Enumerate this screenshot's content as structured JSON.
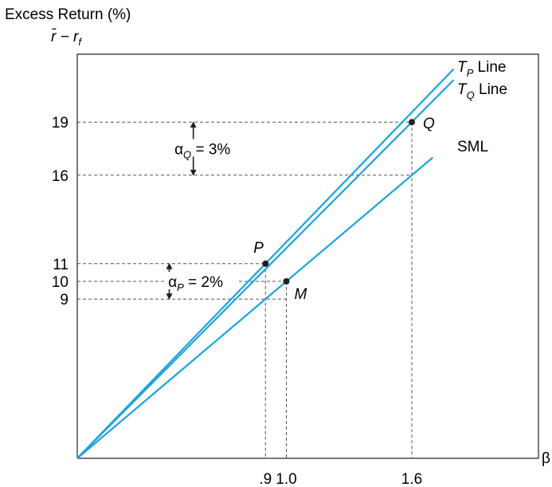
{
  "chart_data": {
    "type": "line",
    "ylabel": "Excess Return (%)",
    "ylabel_formula": "r̄ − r",
    "ylabel_formula_sub": "f",
    "xlabel": "β",
    "xlim": [
      0,
      2.3
    ],
    "ylim": [
      0,
      23
    ],
    "grid": false,
    "x_ticks": [
      {
        "value": 0.9,
        "label": ".9"
      },
      {
        "value": 1.0,
        "label": "1.0"
      },
      {
        "value": 1.6,
        "label": "1.6"
      }
    ],
    "y_ticks": [
      {
        "value": 9,
        "label": "9"
      },
      {
        "value": 10,
        "label": "10"
      },
      {
        "value": 11,
        "label": "11"
      },
      {
        "value": 16,
        "label": "16"
      },
      {
        "value": 19,
        "label": "19"
      }
    ],
    "series": [
      {
        "name": "TP Line",
        "label_main": "T",
        "label_sub": "P",
        "label_rest": " Line",
        "x": [
          0,
          1.8
        ],
        "y": [
          0,
          22
        ],
        "color": "#1ba3e0"
      },
      {
        "name": "TQ Line",
        "label_main": "T",
        "label_sub": "Q",
        "label_rest": " Line",
        "x": [
          0,
          1.8
        ],
        "y": [
          0,
          21.38
        ],
        "color": "#1ba3e0"
      },
      {
        "name": "SML",
        "label_main": "SML",
        "label_sub": "",
        "label_rest": "",
        "x": [
          0,
          1.7
        ],
        "y": [
          0,
          17
        ],
        "color": "#1ba3e0"
      }
    ],
    "points": [
      {
        "name": "P",
        "x": 0.9,
        "y": 11
      },
      {
        "name": "M",
        "x": 1.0,
        "y": 10
      },
      {
        "name": "Q",
        "x": 1.6,
        "y": 19
      }
    ],
    "annotations": [
      {
        "symbol": "α",
        "sub": "Q",
        "text": " = 3%",
        "y_from": 16,
        "y_to": 19
      },
      {
        "symbol": "α",
        "sub": "P",
        "text": " = 2%",
        "y_from": 9,
        "y_to": 11
      }
    ]
  }
}
